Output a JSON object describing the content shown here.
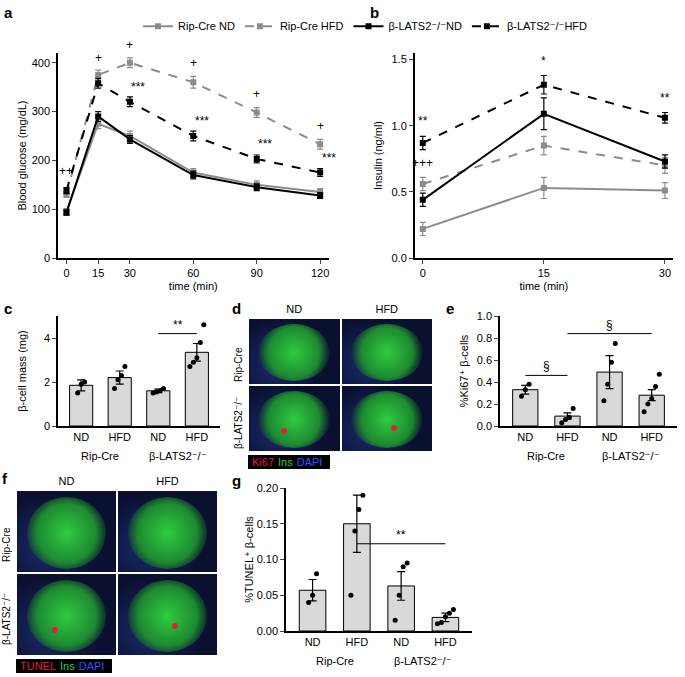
{
  "chart_data": [
    {
      "panel": "a",
      "type": "line",
      "y_label": "Blood glucose (mg/dL)",
      "x_label": "time (min)",
      "x": [
        0,
        15,
        30,
        60,
        90,
        120
      ],
      "xlim": [
        -4,
        124
      ],
      "xticks": [
        0,
        15,
        30,
        60,
        90,
        120
      ],
      "ylim": [
        0,
        420
      ],
      "yticks": [
        0,
        100,
        200,
        300,
        400
      ],
      "legend": "top",
      "series": [
        {
          "name": "Rip-Cre ND",
          "color": "#8c8c8c",
          "line_style": "solid",
          "marker": "square",
          "values": [
            95,
            275,
            250,
            175,
            150,
            135
          ],
          "errors": [
            6,
            10,
            10,
            8,
            8,
            7
          ]
        },
        {
          "name": "Rip-Cre HFD",
          "color": "#8c8c8c",
          "line_style": "dash",
          "marker": "square",
          "values": [
            130,
            375,
            400,
            360,
            298,
            233
          ],
          "errors": [
            6,
            10,
            10,
            12,
            10,
            10
          ]
        },
        {
          "name": "β-LATS2⁻/⁻ND",
          "color": "#000000",
          "line_style": "solid",
          "marker": "square",
          "values": [
            93,
            290,
            243,
            170,
            145,
            128
          ],
          "errors": [
            5,
            10,
            8,
            8,
            7,
            6
          ]
        },
        {
          "name": "β-LATS2⁻/⁻HFD",
          "color": "#000000",
          "line_style": "dash",
          "marker": "square",
          "values": [
            138,
            358,
            320,
            250,
            203,
            175
          ],
          "errors": [
            6,
            10,
            10,
            10,
            8,
            8
          ]
        }
      ],
      "annotations": [
        {
          "x": 0,
          "y": 160,
          "text": "++"
        },
        {
          "x": 15,
          "y": 392,
          "text": "+"
        },
        {
          "x": 30,
          "y": 418,
          "text": "+"
        },
        {
          "x": 60,
          "y": 382,
          "text": "+"
        },
        {
          "x": 90,
          "y": 318,
          "text": "+"
        },
        {
          "x": 120,
          "y": 252,
          "text": "+"
        },
        {
          "x": 34,
          "y": 332,
          "text": "***"
        },
        {
          "x": 64,
          "y": 262,
          "text": "***"
        },
        {
          "x": 94,
          "y": 215,
          "text": "***"
        },
        {
          "x": 124,
          "y": 187,
          "text": "***"
        }
      ]
    },
    {
      "panel": "b",
      "type": "line",
      "y_label": "Insulin (ng/ml)",
      "x_label": "time (min)",
      "x": [
        0,
        15,
        30
      ],
      "xlim": [
        -1,
        31
      ],
      "xticks": [
        0,
        15,
        30
      ],
      "ylim": [
        0,
        1.55
      ],
      "yticks": [
        {
          "value": 0,
          "label": "0.0"
        },
        {
          "value": 0.5,
          "label": "0.5"
        },
        {
          "value": 1,
          "label": "1.0"
        },
        {
          "value": 1.5,
          "label": "1.5"
        }
      ],
      "series": [
        {
          "name": "Rip-Cre ND",
          "color": "#8c8c8c",
          "line_style": "solid",
          "marker": "square",
          "values": [
            0.22,
            0.53,
            0.51
          ],
          "errors": [
            0.05,
            0.08,
            0.06
          ]
        },
        {
          "name": "Rip-Cre HFD",
          "color": "#8c8c8c",
          "line_style": "dash",
          "marker": "square",
          "values": [
            0.56,
            0.85,
            0.7
          ],
          "errors": [
            0.05,
            0.07,
            0.06
          ]
        },
        {
          "name": "β-LATS2⁻/⁻ND",
          "color": "#000000",
          "line_style": "solid",
          "marker": "square",
          "values": [
            0.44,
            1.09,
            0.73
          ],
          "errors": [
            0.05,
            0.12,
            0.05
          ]
        },
        {
          "name": "β-LATS2⁻/⁻HFD",
          "color": "#000000",
          "line_style": "dash",
          "marker": "square",
          "values": [
            0.87,
            1.31,
            1.06
          ],
          "errors": [
            0.05,
            0.07,
            0.04
          ]
        }
      ],
      "annotations": [
        {
          "x": 0,
          "y": 0.97,
          "text": "**"
        },
        {
          "x": 0,
          "y": 0.65,
          "text": "+++"
        },
        {
          "x": 15,
          "y": 1.42,
          "text": "*"
        },
        {
          "x": 30,
          "y": 1.14,
          "text": "**"
        }
      ]
    },
    {
      "panel": "c",
      "type": "bar",
      "y_label": "β-cell mass (mg)",
      "categories": [
        "ND",
        "HFD",
        "ND",
        "HFD"
      ],
      "groups": [
        "Rip-Cre",
        "β-LATS2⁻/⁻"
      ],
      "values": [
        1.85,
        2.2,
        1.6,
        3.35
      ],
      "errors": [
        0.25,
        0.3,
        0.08,
        0.4
      ],
      "points": [
        [
          1.5,
          1.9,
          2.0
        ],
        [
          1.7,
          2.1,
          2.3,
          2.7
        ],
        [
          1.5,
          1.55,
          1.6,
          1.7
        ],
        [
          2.7,
          2.9,
          3.1,
          3.8,
          4.6
        ]
      ],
      "color": "#d9d9d9",
      "ylim": [
        0,
        5
      ],
      "yticks": [
        0,
        2,
        4
      ],
      "brackets": [
        {
          "from": 2,
          "to": 3,
          "y": 4.2,
          "text": "**"
        }
      ]
    },
    {
      "panel": "e",
      "type": "bar",
      "y_label": "%Ki67⁺ β-cells",
      "categories": [
        "ND",
        "HFD",
        "ND",
        "HFD"
      ],
      "groups": [
        "Rip-Cre",
        "β-LATS2⁻/⁻"
      ],
      "values": [
        0.33,
        0.09,
        0.49,
        0.28
      ],
      "errors": [
        0.04,
        0.03,
        0.15,
        0.05
      ],
      "points": [
        [
          0.27,
          0.33,
          0.38
        ],
        [
          0.03,
          0.06,
          0.08,
          0.16
        ],
        [
          0.23,
          0.38,
          0.58,
          0.75
        ],
        [
          0.13,
          0.2,
          0.25,
          0.36,
          0.47
        ]
      ],
      "color": "#d9d9d9",
      "ylim": [
        0,
        1.0
      ],
      "yticks": [
        {
          "value": 0,
          "label": "0.0"
        },
        {
          "value": 0.2,
          "label": "0.2"
        },
        {
          "value": 0.4,
          "label": "0.4"
        },
        {
          "value": 0.6,
          "label": "0.6"
        },
        {
          "value": 0.8,
          "label": "0.8"
        },
        {
          "value": 1.0,
          "label": "1.0"
        }
      ],
      "brackets": [
        {
          "from": 0,
          "to": 1,
          "y": 0.46,
          "text": "§"
        },
        {
          "from": 1,
          "to": 3,
          "y": 0.84,
          "text": "§"
        }
      ]
    },
    {
      "panel": "g",
      "type": "bar",
      "y_label": "%TUNEL⁺ β-cells",
      "categories": [
        "ND",
        "HFD",
        "ND",
        "HFD"
      ],
      "groups": [
        "Rip-Cre",
        "β-LATS2⁻/⁻"
      ],
      "values": [
        0.057,
        0.15,
        0.063,
        0.019
      ],
      "errors": [
        0.015,
        0.04,
        0.02,
        0.006
      ],
      "points": [
        [
          0.04,
          0.05,
          0.08
        ],
        [
          0.05,
          0.14,
          0.17,
          0.19
        ],
        [
          0.015,
          0.05,
          0.09,
          0.095
        ],
        [
          0.01,
          0.012,
          0.02,
          0.025,
          0.03
        ]
      ],
      "color": "#d9d9d9",
      "ylim": [
        0,
        0.2
      ],
      "yticks": [
        {
          "value": 0,
          "label": "0.00"
        },
        {
          "value": 0.05,
          "label": "0.05"
        },
        {
          "value": 0.1,
          "label": "0.10"
        },
        {
          "value": 0.15,
          "label": "0.15"
        },
        {
          "value": 0.2,
          "label": "0.20"
        }
      ],
      "brackets": [
        {
          "from": 1,
          "to": 3,
          "y": 0.122,
          "text": "**"
        }
      ]
    }
  ],
  "image_panels": [
    {
      "panel": "d",
      "columns": [
        "ND",
        "HFD"
      ],
      "rows": [
        "Rip-Cre",
        "β-LATS2⁻/⁻"
      ],
      "stains": [
        {
          "text": "Ki67",
          "color": "#e0203a"
        },
        {
          "text": "Ins",
          "color": "#2ecc40"
        },
        {
          "text": "DAPI",
          "color": "#3050ff"
        }
      ]
    },
    {
      "panel": "f",
      "columns": [
        "ND",
        "HFD"
      ],
      "rows": [
        "Rip-Cre",
        "β-LATS2⁻/⁻"
      ],
      "stains": [
        {
          "text": "TUNEL",
          "color": "#e0203a"
        },
        {
          "text": "Ins",
          "color": "#2ecc40"
        },
        {
          "text": "DAPI",
          "color": "#3050ff"
        }
      ]
    }
  ]
}
